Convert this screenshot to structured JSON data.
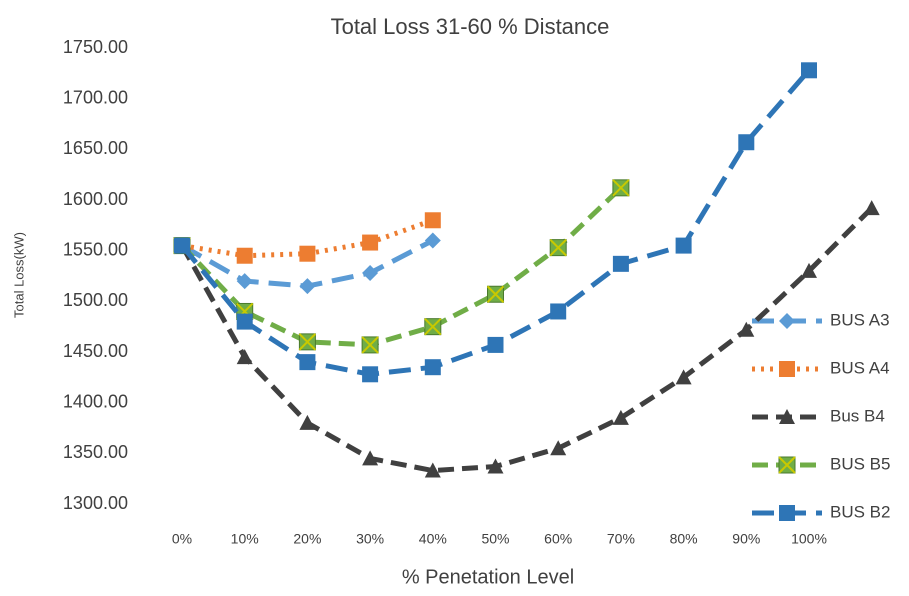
{
  "chart_data": {
    "type": "line",
    "title": "Total Loss 31-60 % Distance",
    "x_label": "% Penetation Level",
    "y_label": "Total Loss(kW)",
    "categories": [
      "0%",
      "10%",
      "20%",
      "30%",
      "40%",
      "50%",
      "60%",
      "70%",
      "80%",
      "90%",
      "100%",
      null
    ],
    "ylim": [
      1300,
      1750
    ],
    "yticks": [
      {
        "value": 1300,
        "label": "1300.00"
      },
      {
        "value": 1350,
        "label": "1350.00"
      },
      {
        "value": 1400,
        "label": "1400.00"
      },
      {
        "value": 1450,
        "label": "1450.00"
      },
      {
        "value": 1500,
        "label": "1500.00"
      },
      {
        "value": 1550,
        "label": "1550.00"
      },
      {
        "value": 1600,
        "label": "1600.00"
      },
      {
        "value": 1650,
        "label": "1650.00"
      },
      {
        "value": 1700,
        "label": "1700.00"
      },
      {
        "value": 1750,
        "label": "1750.00"
      }
    ],
    "legend": "right",
    "series": [
      {
        "name": "BUS A3",
        "color": "#5b9bd5",
        "marker": "diamond",
        "dash": "long",
        "values": [
          1555,
          1520,
          1515,
          1528,
          1560,
          null,
          null,
          null,
          null,
          null,
          null,
          null
        ]
      },
      {
        "name": "BUS A4",
        "color": "#ed7d31",
        "marker": "square",
        "dash": "dot",
        "values": [
          1555,
          1545,
          1547,
          1558,
          1580,
          null,
          null,
          null,
          null,
          null,
          null,
          null
        ]
      },
      {
        "name": "Bus B4",
        "color": "#404040",
        "marker": "triangle",
        "dash": "dash",
        "values": [
          1555,
          1445,
          1380,
          1345,
          1333,
          1337,
          1355,
          1385,
          1425,
          1472,
          1530,
          1592
        ]
      },
      {
        "name": "BUS B5",
        "color": "#70ad47",
        "marker": "x-square",
        "dash": "dash",
        "values": [
          1555,
          1490,
          1460,
          1457,
          1475,
          1507,
          1553,
          1612,
          null,
          null,
          null,
          null
        ]
      },
      {
        "name": "BUS B2",
        "color": "#2e75b6",
        "marker": "square",
        "dash": "long",
        "values": [
          1555,
          1480,
          1440,
          1428,
          1435,
          1457,
          1490,
          1537,
          1555,
          1657,
          1728,
          null
        ]
      }
    ]
  }
}
